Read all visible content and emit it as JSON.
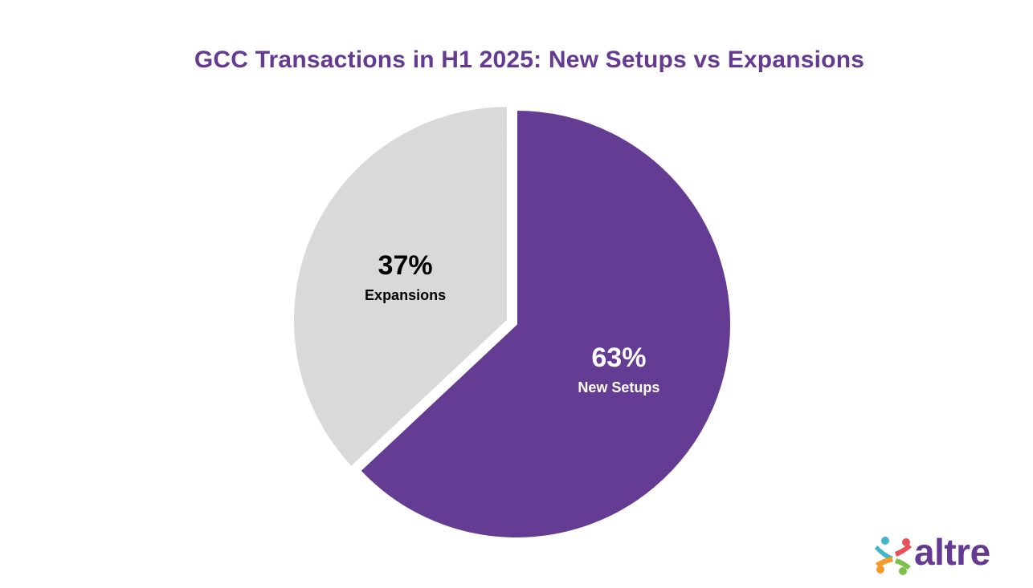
{
  "chart_data": {
    "type": "pie",
    "title": "GCC Transactions in H1 2025: New Setups vs Expansions",
    "slices": [
      {
        "name": "New Setups",
        "value": 63,
        "label": "63%",
        "color": "#653c94",
        "text_color": "#ffffff",
        "exploded": false
      },
      {
        "name": "Expansions",
        "value": 37,
        "label": "37%",
        "color": "#d9d9d9",
        "text_color": "#000000",
        "exploded": true
      }
    ],
    "start_angle_deg": 0,
    "direction": "clockwise",
    "legend": "none"
  },
  "brand": {
    "logo_text": "altre",
    "logo_color": "#653a92",
    "mark_colors": [
      "#3fb7c9",
      "#e9505b",
      "#f39a2b",
      "#7cc04a"
    ]
  }
}
